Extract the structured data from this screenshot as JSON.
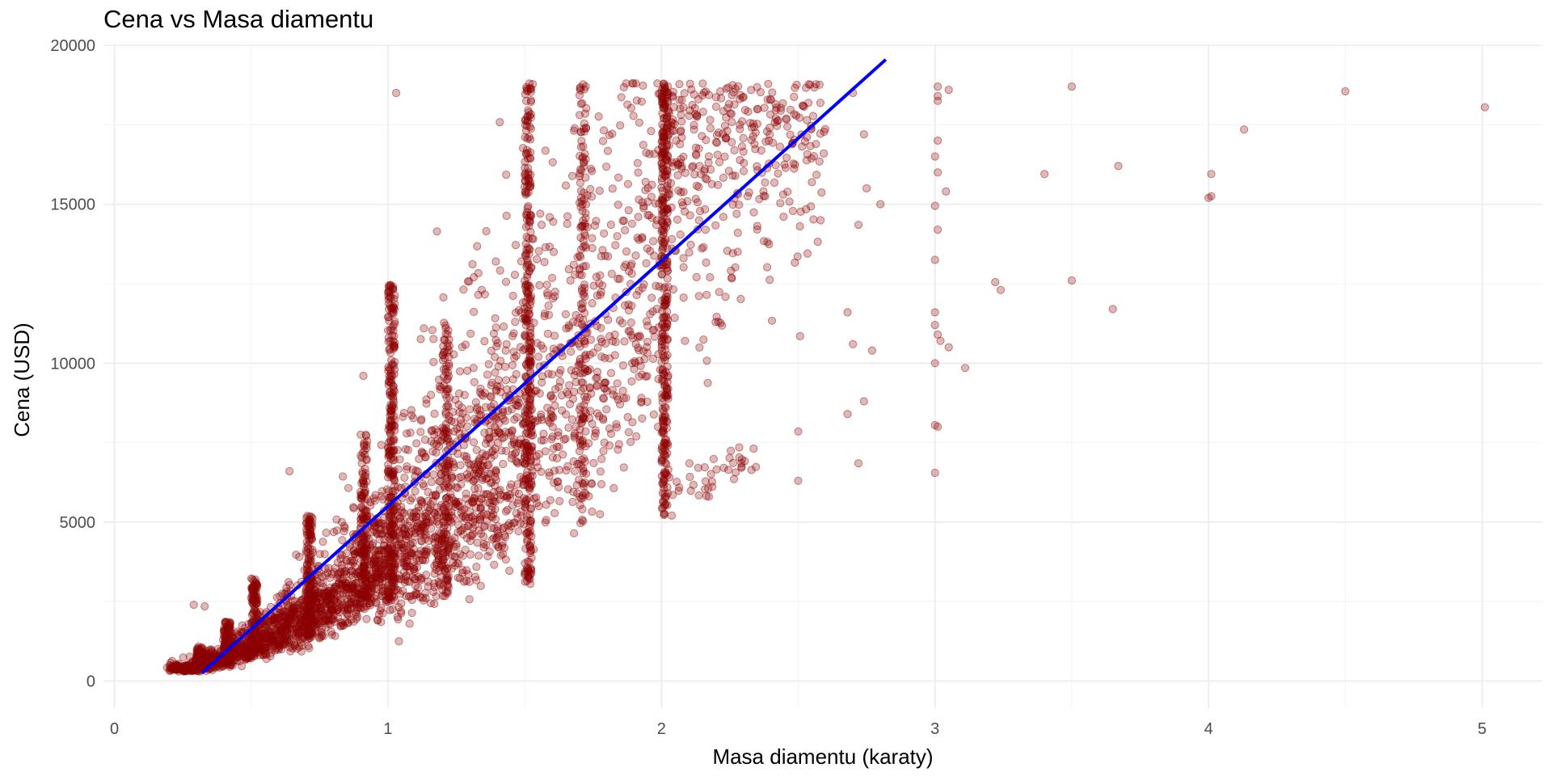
{
  "chart_data": {
    "type": "scatter",
    "title": "Cena vs Masa diamentu",
    "xlabel": "Masa diamentu (karaty)",
    "ylabel": "Cena (USD)",
    "xlim": [
      -0.04,
      5.22
    ],
    "ylim": [
      -850,
      20000
    ],
    "x_ticks": [
      0,
      1,
      2,
      3,
      4,
      5
    ],
    "y_ticks": [
      0,
      5000,
      10000,
      15000,
      20000
    ],
    "grid": true,
    "legend": "none",
    "colors": {
      "points": "#8B0000",
      "trend": "#0000FF",
      "grid_major": "#EBEBEB",
      "grid_minor": "#F5F5F5"
    },
    "trend_line": {
      "x": [
        0.32,
        2.82
      ],
      "y": [
        250,
        19550
      ]
    },
    "points_sample": [
      {
        "x": 3.01,
        "y": 18700
      },
      {
        "x": 3.01,
        "y": 18400
      },
      {
        "x": 3.01,
        "y": 18250
      },
      {
        "x": 3.05,
        "y": 18600
      },
      {
        "x": 3.01,
        "y": 17000
      },
      {
        "x": 3.0,
        "y": 16500
      },
      {
        "x": 3.01,
        "y": 16000
      },
      {
        "x": 3.04,
        "y": 15400
      },
      {
        "x": 3.0,
        "y": 14950
      },
      {
        "x": 3.01,
        "y": 14200
      },
      {
        "x": 3.0,
        "y": 13250
      },
      {
        "x": 3.22,
        "y": 12550
      },
      {
        "x": 3.24,
        "y": 12300
      },
      {
        "x": 3.0,
        "y": 11600
      },
      {
        "x": 3.0,
        "y": 11200
      },
      {
        "x": 3.01,
        "y": 10900
      },
      {
        "x": 3.02,
        "y": 10700
      },
      {
        "x": 3.05,
        "y": 10500
      },
      {
        "x": 3.0,
        "y": 10000
      },
      {
        "x": 3.11,
        "y": 9850
      },
      {
        "x": 3.0,
        "y": 8050
      },
      {
        "x": 3.01,
        "y": 8000
      },
      {
        "x": 3.0,
        "y": 6550
      },
      {
        "x": 3.4,
        "y": 15950
      },
      {
        "x": 3.5,
        "y": 18700
      },
      {
        "x": 3.5,
        "y": 12600
      },
      {
        "x": 3.65,
        "y": 11700
      },
      {
        "x": 3.67,
        "y": 16200
      },
      {
        "x": 4.01,
        "y": 15950
      },
      {
        "x": 4.01,
        "y": 15250
      },
      {
        "x": 4.0,
        "y": 15200
      },
      {
        "x": 4.13,
        "y": 17350
      },
      {
        "x": 4.5,
        "y": 18550
      },
      {
        "x": 5.01,
        "y": 18050
      },
      {
        "x": 2.5,
        "y": 6300
      },
      {
        "x": 2.5,
        "y": 7850
      },
      {
        "x": 2.68,
        "y": 8400
      },
      {
        "x": 2.72,
        "y": 6850
      },
      {
        "x": 2.74,
        "y": 8800
      },
      {
        "x": 2.7,
        "y": 10600
      },
      {
        "x": 2.77,
        "y": 10400
      },
      {
        "x": 2.68,
        "y": 11600
      },
      {
        "x": 2.8,
        "y": 15000
      },
      {
        "x": 2.75,
        "y": 15500
      },
      {
        "x": 2.72,
        "y": 14350
      },
      {
        "x": 2.74,
        "y": 17200
      },
      {
        "x": 2.7,
        "y": 18500
      },
      {
        "x": 1.03,
        "y": 18500
      },
      {
        "x": 0.91,
        "y": 9600
      },
      {
        "x": 0.64,
        "y": 6600
      },
      {
        "x": 1.04,
        "y": 1250
      },
      {
        "x": 0.33,
        "y": 2350
      },
      {
        "x": 0.29,
        "y": 2400
      },
      {
        "x": 1.68,
        "y": 4650
      }
    ]
  }
}
